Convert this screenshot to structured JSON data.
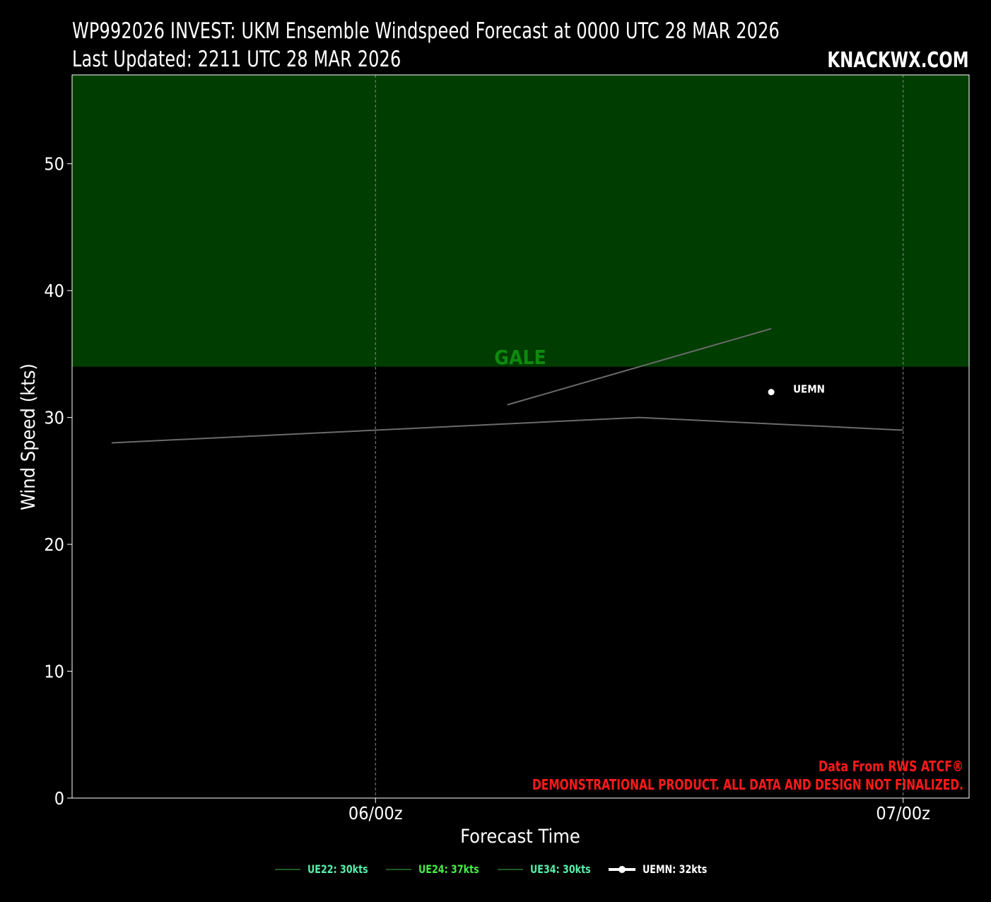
{
  "header": {
    "title_line1": "WP992026 INVEST: UKM Ensemble Windspeed Forecast at 0000 UTC 28 MAR 2026",
    "title_line2": "Last Updated: 2211 UTC 28 MAR 2026",
    "brand": "KNACKWX.COM"
  },
  "notes": {
    "source": "Data From RWS ATCF®",
    "disclaimer": "DEMONSTRATIONAL PRODUCT. ALL DATA AND DESIGN NOT FINALIZED."
  },
  "colors": {
    "background": "#000000",
    "gale_band": "#003d00",
    "gale_label": "#0e8a0e",
    "member_line": "#6b6b6b",
    "member_legend_line": "#1f5a1f",
    "legend_text_green": "#44ee44",
    "legend_text_teal": "#55eeaa",
    "notes": "#ff1a1a"
  },
  "chart_data": {
    "type": "line",
    "title": "WP992026 INVEST: UKM Ensemble Windspeed Forecast at 0000 UTC 28 MAR 2026",
    "xlabel": "Forecast Time",
    "ylabel": "Wind Speed (kts)",
    "ylim": [
      0,
      57
    ],
    "yticks": [
      0,
      10,
      20,
      30,
      40,
      50
    ],
    "x_ticks": [
      {
        "label": "06/00z",
        "hour": 0
      },
      {
        "label": "07/00z",
        "hour": 24
      }
    ],
    "xlim_hours": [
      -13.8,
      27.0
    ],
    "grid": "vertical dashed at x ticks",
    "threshold_bands": [
      {
        "label": "GALE",
        "from": 34,
        "to": 57
      }
    ],
    "series": [
      {
        "name": "UE22",
        "legend": "UE22: 30kts",
        "x_hours": [
          -12,
          0,
          12,
          24
        ],
        "values": [
          28,
          29,
          30,
          29
        ]
      },
      {
        "name": "UE24",
        "legend": "UE24: 37kts",
        "x_hours": [
          6,
          12,
          18
        ],
        "values": [
          31,
          34,
          37
        ]
      },
      {
        "name": "UE34",
        "legend": "UE34: 30kts",
        "x_hours": [],
        "values": []
      },
      {
        "name": "UEMN",
        "legend": "UEMN: 32kts",
        "x_hours": [
          18
        ],
        "values": [
          32
        ],
        "point_label": "UEMN"
      }
    ]
  }
}
